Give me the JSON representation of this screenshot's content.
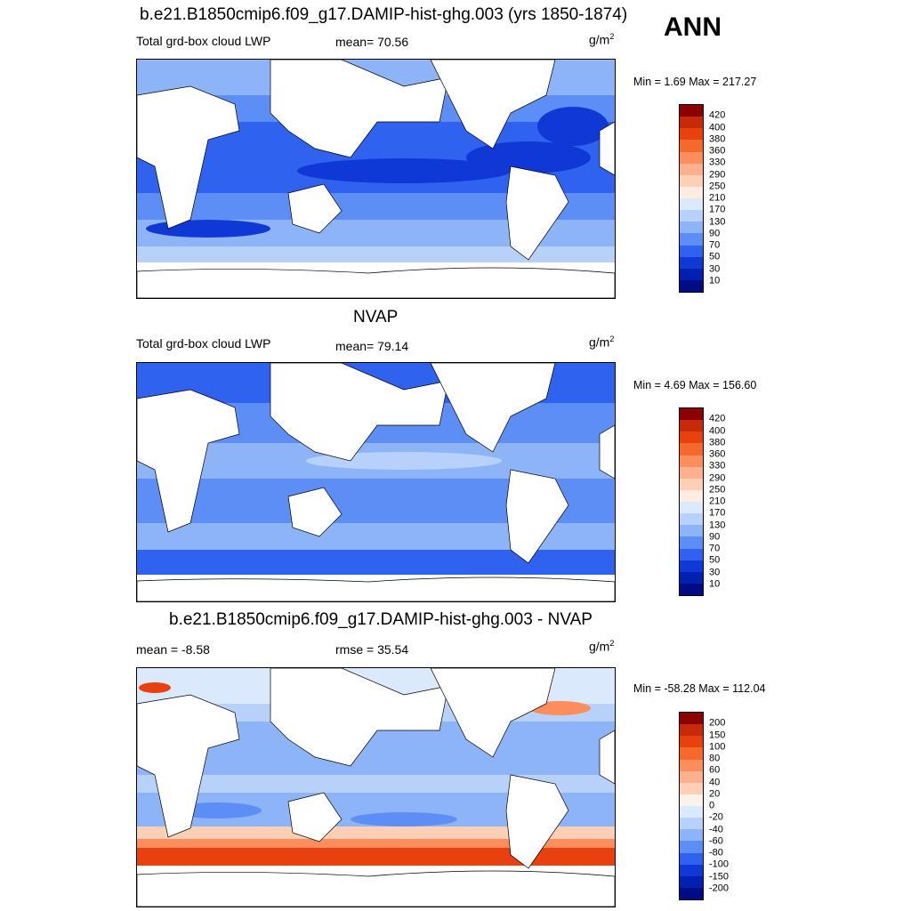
{
  "season": "ANN",
  "panels": [
    {
      "title": "b.e21.B1850cmip6.f09_g17.DAMIP-hist-ghg.003 (yrs 1850-1874)",
      "left_label": "Total grd-box cloud LWP",
      "mid_label": "mean=  70.56",
      "units_base": "g/m",
      "units_exp": "2",
      "minmax": "Min =   1.69 Max = 217.27",
      "levels": [
        "420",
        "400",
        "380",
        "360",
        "330",
        "290",
        "250",
        "210",
        "170",
        "130",
        "90",
        "70",
        "50",
        "30",
        "10"
      ],
      "colors": [
        "#8b0000",
        "#c62a09",
        "#e8400f",
        "#f56a2c",
        "#fb8e5c",
        "#fcb08e",
        "#fdd0b6",
        "#fdecdf",
        "#dae9fb",
        "#b8d1fa",
        "#8eb4f8",
        "#5c8ef5",
        "#2f62ee",
        "#1038d5",
        "#0020b0",
        "#000c86"
      ]
    },
    {
      "title": "NVAP",
      "left_label": "Total grd-box cloud LWP",
      "mid_label": "mean=  79.14",
      "units_base": "g/m",
      "units_exp": "2",
      "minmax": "Min =   4.69 Max = 156.60",
      "levels": [
        "420",
        "400",
        "380",
        "360",
        "330",
        "290",
        "250",
        "210",
        "170",
        "130",
        "90",
        "70",
        "50",
        "30",
        "10"
      ],
      "colors": [
        "#8b0000",
        "#c62a09",
        "#e8400f",
        "#f56a2c",
        "#fb8e5c",
        "#fcb08e",
        "#fdd0b6",
        "#fdecdf",
        "#dae9fb",
        "#b8d1fa",
        "#8eb4f8",
        "#5c8ef5",
        "#2f62ee",
        "#1038d5",
        "#0020b0",
        "#000c86"
      ]
    },
    {
      "title": "b.e21.B1850cmip6.f09_g17.DAMIP-hist-ghg.003 - NVAP",
      "left_label": "mean =  -8.58",
      "mid_label": "rmse =  35.54",
      "units_base": "g/m",
      "units_exp": "2",
      "minmax": "Min = -58.28 Max = 112.04",
      "levels": [
        "200",
        "150",
        "100",
        "80",
        "60",
        "40",
        "20",
        "0",
        "-20",
        "-40",
        "-60",
        "-80",
        "-100",
        "-150",
        "-200"
      ],
      "colors": [
        "#8b0000",
        "#c62a09",
        "#e8400f",
        "#f56a2c",
        "#fb8e5c",
        "#fcb08e",
        "#fdd0b6",
        "#fdf2ea",
        "#dae9fb",
        "#b8d1fa",
        "#8eb4f8",
        "#5c8ef5",
        "#2f62ee",
        "#1038d5",
        "#0020b0",
        "#000c86"
      ]
    }
  ]
}
